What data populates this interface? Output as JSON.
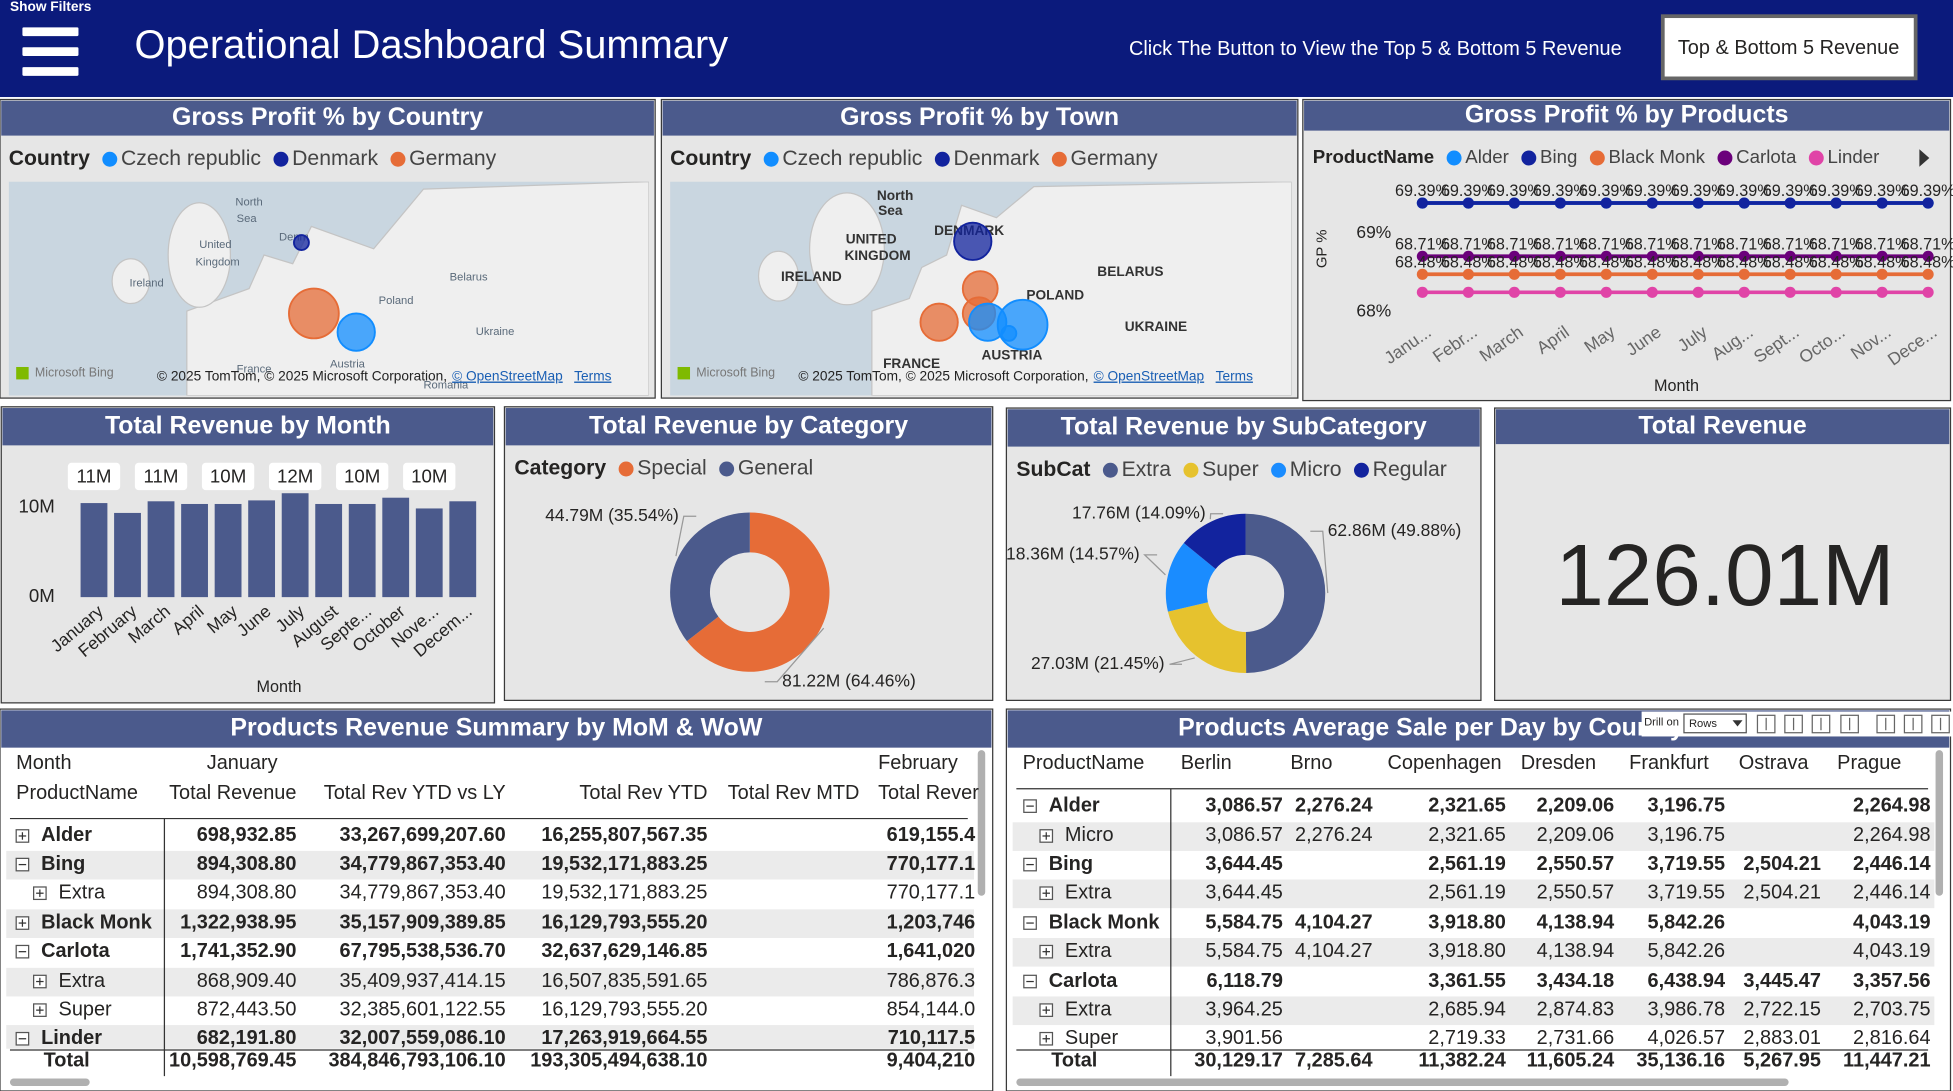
{
  "header": {
    "show_filters": "Show Filters",
    "title": "Operational Dashboard Summary",
    "prompt": "Click The Button to View the Top 5 & Bottom 5 Revenue",
    "button": "Top & Bottom 5 Revenue"
  },
  "maps": [
    {
      "title": "Gross Profit % by Country",
      "legend_title": "Country",
      "legend": [
        {
          "name": "Czech republic",
          "color": "#118dff"
        },
        {
          "name": "Denmark",
          "color": "#12239e"
        },
        {
          "name": "Germany",
          "color": "#e66c37"
        }
      ],
      "labels": [
        "North",
        "Sea",
        "United",
        "Kingdom",
        "Ireland",
        "Denm",
        "Poland",
        "Belarus",
        "Ukraine",
        "France",
        "Austria",
        "Romania"
      ],
      "attribution": [
        "Microsoft Bing",
        "© 2025 TomTom, © 2025 Microsoft Corporation,",
        "© OpenStreetMap",
        "Terms"
      ]
    },
    {
      "title": "Gross Profit % by Town",
      "legend_title": "Country",
      "legend": [
        {
          "name": "Czech republic",
          "color": "#118dff"
        },
        {
          "name": "Denmark",
          "color": "#12239e"
        },
        {
          "name": "Germany",
          "color": "#e66c37"
        }
      ],
      "labels": [
        "North",
        "Sea",
        "UNITED",
        "KINGDOM",
        "IRELAND",
        "DENMARK",
        "BELARUS",
        "POLAND",
        "UKRAINE",
        "FRANCE",
        "AUSTRIA"
      ],
      "attribution": [
        "Microsoft Bing",
        "© 2025 TomTom, © 2025 Microsoft Corporation,",
        "© OpenStreetMap",
        "Terms"
      ]
    }
  ],
  "chart_data": [
    {
      "type": "line",
      "title": "Gross Profit % by Products",
      "legend_title": "ProductName",
      "x_label": "Month",
      "y_label": "GP %",
      "categories": [
        "Janu...",
        "Febr...",
        "March",
        "April",
        "May",
        "June",
        "July",
        "Aug...",
        "Sept...",
        "Octo...",
        "Nov...",
        "Dece..."
      ],
      "ylim": [
        67.9,
        69.6
      ],
      "yticks": [
        {
          "value": 68,
          "label": "68%"
        },
        {
          "value": 69,
          "label": "69%"
        }
      ],
      "series": [
        {
          "name": "Alder",
          "color": "#118dff",
          "values": [
            69.39,
            69.39,
            69.39,
            69.39,
            69.39,
            69.39,
            69.39,
            69.39,
            69.39,
            69.39,
            69.39,
            69.39
          ]
        },
        {
          "name": "Bing",
          "color": "#12239e",
          "values": [
            69.39,
            69.39,
            69.39,
            69.39,
            69.39,
            69.39,
            69.39,
            69.39,
            69.39,
            69.39,
            69.39,
            69.39
          ],
          "value_labels": [
            "69.39%",
            "69.39%",
            "69.39%",
            "69.39%",
            "69.39%",
            "69.39%",
            "69.39%",
            "69.39%",
            "69.39%",
            "69.39%",
            "69.39%",
            "69.39%"
          ]
        },
        {
          "name": "Black Monk",
          "color": "#e66c37",
          "values": [
            68.48,
            68.48,
            68.48,
            68.48,
            68.48,
            68.48,
            68.48,
            68.48,
            68.48,
            68.48,
            68.48,
            68.48
          ],
          "value_labels": [
            "68.48%",
            "68.48%",
            "68.48%",
            "68.48%",
            "68.48%",
            "68.48%",
            "68.48%",
            "68.48%",
            "68.48%",
            "68.48%",
            "68.48%",
            "68.48%"
          ]
        },
        {
          "name": "Carlota",
          "color": "#6b007b",
          "values": [
            68.71,
            68.71,
            68.71,
            68.71,
            68.71,
            68.71,
            68.71,
            68.71,
            68.71,
            68.71,
            68.71,
            68.71
          ],
          "value_labels": [
            "68.71%",
            "68.71%",
            "68.71%",
            "68.71%",
            "68.71%",
            "68.71%",
            "68.71%",
            "68.71%",
            "68.71%",
            "68.71%",
            "68.71%",
            "68.71%"
          ]
        },
        {
          "name": "Linder",
          "color": "#e044a7",
          "values": [
            68.25,
            68.25,
            68.25,
            68.25,
            68.25,
            68.25,
            68.25,
            68.25,
            68.25,
            68.25,
            68.25,
            68.25
          ]
        }
      ]
    },
    {
      "type": "bar",
      "title": "Total Revenue by Month",
      "x_label": "Month",
      "color": "#4b5a8c",
      "categories": [
        "January",
        "February",
        "March",
        "April",
        "May",
        "June",
        "July",
        "August",
        "Septe...",
        "October",
        "Nove...",
        "Decem..."
      ],
      "values": [
        10.5,
        9.4,
        10.7,
        10.4,
        10.4,
        10.8,
        11.6,
        10.4,
        10.4,
        11.1,
        9.9,
        10.7
      ],
      "value_labels": [
        "11M",
        null,
        "11M",
        null,
        "10M",
        null,
        "12M",
        null,
        "10M",
        null,
        "10M",
        null
      ],
      "ylim": [
        0,
        15
      ],
      "yticks": [
        {
          "value": 0,
          "label": "0M"
        },
        {
          "value": 10,
          "label": "10M"
        }
      ]
    },
    {
      "type": "donut",
      "title": "Total Revenue by Category",
      "legend_title": "Category",
      "categories": [
        "Special",
        "General"
      ],
      "colors": [
        "#e66c37",
        "#4b5a8c"
      ],
      "values": [
        81.22,
        44.79
      ],
      "value_labels": [
        "81.22M (64.46%)",
        "44.79M (35.54%)"
      ]
    },
    {
      "type": "donut",
      "title": "Total Revenue by SubCategory",
      "legend_title": "SubCat",
      "categories": [
        "Extra",
        "Super",
        "Micro",
        "Regular"
      ],
      "colors": [
        "#4b5a8c",
        "#e6c22e",
        "#1a8cff",
        "#12239e"
      ],
      "values": [
        62.86,
        27.03,
        18.36,
        17.76
      ],
      "value_labels": [
        "62.86M (49.88%)",
        "27.03M (21.45%)",
        "18.36M (14.57%)",
        "17.76M (14.09%)"
      ]
    }
  ],
  "card": {
    "title": "Total Revenue",
    "value": "126.01M"
  },
  "tables": [
    {
      "title": "Products Revenue Summary by MoM & WoW",
      "column_group_label": "Month",
      "column_groups": [
        "January",
        "February"
      ],
      "row_label": "ProductName",
      "columns": [
        "Total Revenue",
        "Total Rev YTD vs LY",
        "Total Rev YTD",
        "Total Rev MTD",
        "Total Rever"
      ],
      "rows": [
        {
          "label": "Alder",
          "level": 0,
          "expanded": false,
          "cells": [
            "698,932.85",
            "33,267,699,207.60",
            "16,255,807,567.35",
            null,
            "619,155.4"
          ]
        },
        {
          "label": "Bing",
          "level": 0,
          "expanded": true,
          "cells": [
            "894,308.80",
            "34,779,867,353.40",
            "19,532,171,883.25",
            null,
            "770,177.1"
          ]
        },
        {
          "label": "Extra",
          "level": 1,
          "expanded": false,
          "cells": [
            "894,308.80",
            "34,779,867,353.40",
            "19,532,171,883.25",
            null,
            "770,177.1"
          ]
        },
        {
          "label": "Black Monk",
          "level": 0,
          "expanded": false,
          "cells": [
            "1,322,938.95",
            "35,157,909,389.85",
            "16,129,793,555.20",
            null,
            "1,203,746"
          ]
        },
        {
          "label": "Carlota",
          "level": 0,
          "expanded": true,
          "cells": [
            "1,741,352.90",
            "67,795,538,536.70",
            "32,637,629,146.85",
            null,
            "1,641,020"
          ]
        },
        {
          "label": "Extra",
          "level": 1,
          "expanded": false,
          "cells": [
            "868,909.40",
            "35,409,937,414.15",
            "16,507,835,591.65",
            null,
            "786,876.3"
          ]
        },
        {
          "label": "Super",
          "level": 1,
          "expanded": false,
          "cells": [
            "872,443.50",
            "32,385,601,122.55",
            "16,129,793,555.20",
            null,
            "854,144.0"
          ]
        },
        {
          "label": "Linder",
          "level": 0,
          "expanded": true,
          "cells": [
            "682,191.80",
            "32,007,559,086.10",
            "17,263,919,664.55",
            null,
            "710,117.5"
          ]
        }
      ],
      "total": {
        "label": "Total",
        "cells": [
          "10,598,769.45",
          "384,846,793,106.10",
          "193,305,494,638.10",
          null,
          "9,404,210"
        ]
      }
    },
    {
      "title": "Products Average  Sale per Day by Country & Town",
      "row_label": "ProductName",
      "toolbar": {
        "drill_label": "Drill on",
        "drill_option": "Rows"
      },
      "columns": [
        "Berlin",
        "Brno",
        "Copenhagen",
        "Dresden",
        "Frankfurt",
        "Ostrava",
        "Prague"
      ],
      "rows": [
        {
          "label": "Alder",
          "level": 0,
          "expanded": true,
          "cells": [
            "3,086.57",
            "2,276.24",
            "2,321.65",
            "2,209.06",
            "3,196.75",
            null,
            "2,264.98"
          ]
        },
        {
          "label": "Micro",
          "level": 1,
          "expanded": false,
          "cells": [
            "3,086.57",
            "2,276.24",
            "2,321.65",
            "2,209.06",
            "3,196.75",
            null,
            "2,264.98"
          ]
        },
        {
          "label": "Bing",
          "level": 0,
          "expanded": true,
          "cells": [
            "3,644.45",
            null,
            "2,561.19",
            "2,550.57",
            "3,719.55",
            "2,504.21",
            "2,446.14"
          ]
        },
        {
          "label": "Extra",
          "level": 1,
          "expanded": false,
          "cells": [
            "3,644.45",
            null,
            "2,561.19",
            "2,550.57",
            "3,719.55",
            "2,504.21",
            "2,446.14"
          ]
        },
        {
          "label": "Black Monk",
          "level": 0,
          "expanded": true,
          "cells": [
            "5,584.75",
            "4,104.27",
            "3,918.80",
            "4,138.94",
            "5,842.26",
            null,
            "4,043.19"
          ]
        },
        {
          "label": "Extra",
          "level": 1,
          "expanded": false,
          "cells": [
            "5,584.75",
            "4,104.27",
            "3,918.80",
            "4,138.94",
            "5,842.26",
            null,
            "4,043.19"
          ]
        },
        {
          "label": "Carlota",
          "level": 0,
          "expanded": true,
          "cells": [
            "6,118.79",
            null,
            "3,361.55",
            "3,434.18",
            "6,438.94",
            "3,445.47",
            "3,357.56"
          ]
        },
        {
          "label": "Extra",
          "level": 1,
          "expanded": false,
          "cells": [
            "3,964.25",
            null,
            "2,685.94",
            "2,874.83",
            "3,986.78",
            "2,722.15",
            "2,703.75"
          ]
        },
        {
          "label": "Super",
          "level": 1,
          "expanded": false,
          "cells": [
            "3,901.56",
            null,
            "2,719.33",
            "2,731.66",
            "4,026.57",
            "2,883.01",
            "2,816.64"
          ]
        }
      ],
      "total": {
        "label": "Total",
        "cells": [
          "30,129.17",
          "7,285.64",
          "11,382.24",
          "11,605.24",
          "35,136.16",
          "5,267.95",
          "11,447.21"
        ]
      }
    }
  ]
}
